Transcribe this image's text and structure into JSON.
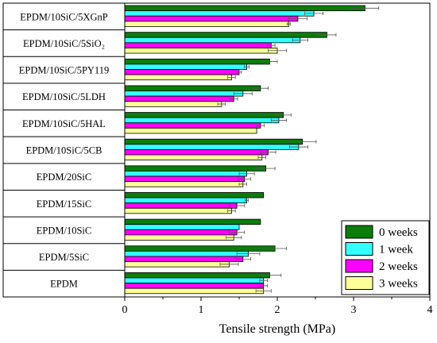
{
  "chart_data": {
    "type": "bar",
    "orientation": "horizontal",
    "title": "",
    "xlabel": "Tensile strength (MPa)",
    "ylabel": "",
    "xlim": [
      0,
      4
    ],
    "xticks": [
      0,
      1,
      2,
      3,
      4
    ],
    "grid": false,
    "legend_position": "bottom-right",
    "categories": [
      "EPDM/10SiC/5XGnP",
      "EPDM/10SiC/5SiO₂",
      "EPDM/10SiC/5PY119",
      "EPDM/10SiC/5LDH",
      "EPDM/10SiC/5HAL",
      "EPDM/10SiC/5CB",
      "EPDM/20SiC",
      "EPDM/15SiC",
      "EPDM/10SiC",
      "EPDM/5SiC",
      "EPDM"
    ],
    "series": [
      {
        "name": "0 weeks",
        "color": "#0a7d0a",
        "values": [
          3.15,
          2.65,
          1.9,
          1.78,
          2.08,
          2.33,
          1.85,
          1.82,
          1.78,
          1.97,
          1.9
        ],
        "errors": [
          0.18,
          0.12,
          0.1,
          0.1,
          0.1,
          0.18,
          0.12,
          0.0,
          0.0,
          0.15,
          0.15
        ]
      },
      {
        "name": "1 week",
        "color": "#33ffff",
        "values": [
          2.48,
          2.3,
          1.6,
          1.55,
          2.02,
          2.28,
          1.6,
          1.6,
          1.5,
          1.62,
          1.82
        ],
        "errors": [
          0.12,
          0.1,
          0.03,
          0.12,
          0.1,
          0.12,
          0.1,
          0.02,
          0.0,
          0.15,
          0.05
        ]
      },
      {
        "name": "2 weeks",
        "color": "#ff00ff",
        "values": [
          2.27,
          1.92,
          1.5,
          1.43,
          1.78,
          1.88,
          1.57,
          1.47,
          1.47,
          1.55,
          1.82
        ],
        "errors": [
          0.12,
          0.05,
          0.03,
          0.05,
          0.05,
          0.1,
          0.08,
          0.1,
          0.1,
          0.1,
          0.05
        ]
      },
      {
        "name": "3 weeks",
        "color": "#ffff99",
        "values": [
          2.15,
          2.0,
          1.4,
          1.27,
          1.73,
          1.8,
          1.55,
          1.4,
          1.43,
          1.37,
          1.82
        ],
        "errors": [
          0.02,
          0.12,
          0.05,
          0.05,
          0.0,
          0.05,
          0.05,
          0.05,
          0.1,
          0.12,
          0.1
        ]
      }
    ]
  }
}
